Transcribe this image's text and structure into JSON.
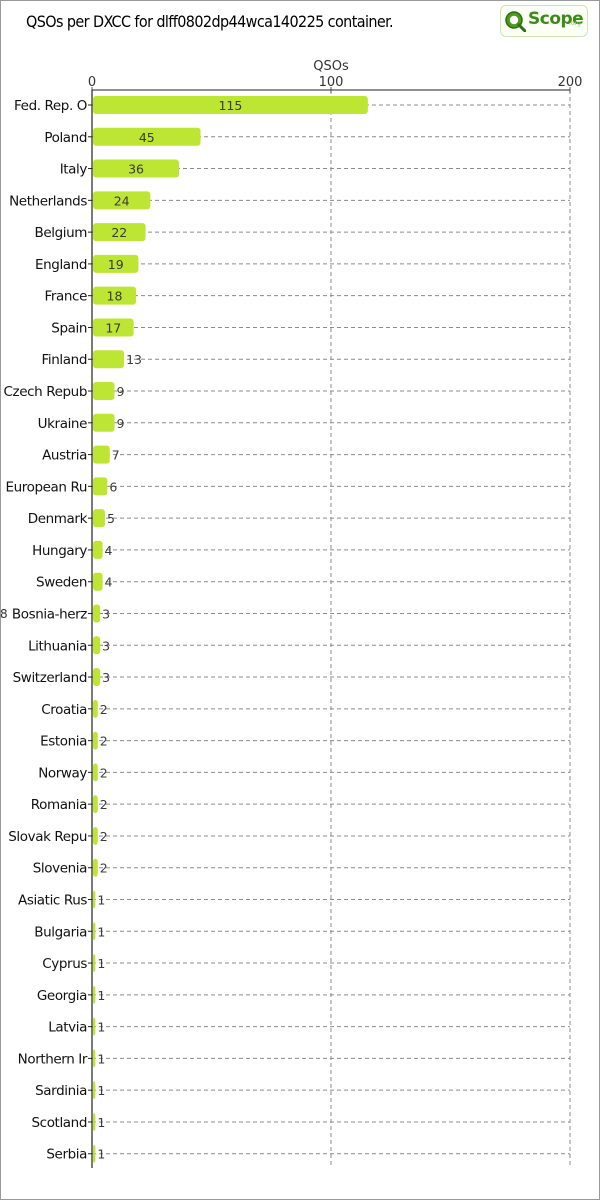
{
  "chart_data": {
    "type": "bar",
    "orientation": "horizontal",
    "title": "QSOs per DXCC for dlff0802dp44wca140225 container.",
    "xlabel": "QSOs",
    "ylabel": "",
    "xlim": [
      0,
      200
    ],
    "xticks": [
      "0",
      "100",
      "200"
    ],
    "grid": true,
    "bar_color": "#bde534",
    "categories": [
      "Fed. Rep. O",
      "Poland",
      "Italy",
      "Netherlands",
      "Belgium",
      "England",
      "France",
      "Spain",
      "Finland",
      "Czech Repub",
      "Ukraine",
      "Austria",
      "European Ru",
      "Denmark",
      "Hungary",
      "Sweden",
      "Bosnia-herz",
      "Lithuania",
      "Switzerland",
      "Croatia",
      "Estonia",
      "Norway",
      "Romania",
      "Slovak Repu",
      "Slovenia",
      "Asiatic Rus",
      "Bulgaria",
      "Cyprus",
      "Georgia",
      "Latvia",
      "Northern Ir",
      "Sardinia",
      "Scotland",
      "Serbia"
    ],
    "values": [
      115,
      45,
      36,
      24,
      22,
      19,
      18,
      17,
      13,
      9,
      9,
      7,
      6,
      5,
      4,
      4,
      3,
      3,
      3,
      2,
      2,
      2,
      2,
      2,
      2,
      1,
      1,
      1,
      1,
      1,
      1,
      1,
      1,
      1
    ]
  },
  "logo": {
    "text": "Scope",
    "suffix": ".org",
    "icon": "qscope-logo-icon"
  },
  "left_edge_mark": "8"
}
